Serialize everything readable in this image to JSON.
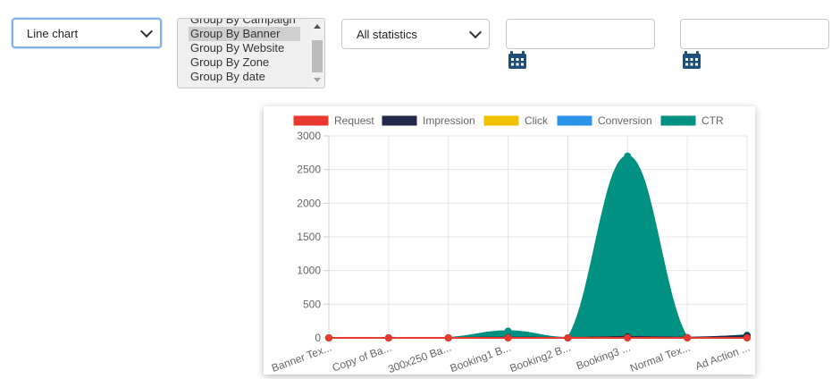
{
  "controls": {
    "chart_type": "Line chart",
    "group_options": [
      "Group By Campaign",
      "Group By Banner",
      "Group By Website",
      "Group By Zone",
      "Group By date"
    ],
    "group_selected_index": 1,
    "statistics": "All statistics",
    "date_from": "",
    "date_to": ""
  },
  "icons": {
    "calendar_from": "calendar-icon",
    "calendar_to": "calendar-icon"
  },
  "colors": {
    "accent_focus": "#7fb2f0",
    "calendar": "#1e4f7a"
  },
  "chart_data": {
    "type": "area",
    "categories": [
      "Banner Tex...",
      "Copy of Ba...",
      "300x250 Ba...",
      "Booking1 B...",
      "Booking2 B...",
      "Booking3 ...",
      "Normal Tex...",
      "Ad Action ..."
    ],
    "ylim": [
      0,
      3000
    ],
    "yticks": [
      0,
      500,
      1000,
      1500,
      2000,
      2500,
      3000
    ],
    "grid": true,
    "legend_position": "top",
    "series": [
      {
        "name": "Request",
        "color": "#e8392f",
        "values": [
          0,
          0,
          0,
          0,
          0,
          0,
          0,
          0
        ]
      },
      {
        "name": "Impression",
        "color": "#22294a",
        "values": [
          0,
          0,
          0,
          5,
          0,
          15,
          5,
          30
        ]
      },
      {
        "name": "Click",
        "color": "#f2c200",
        "values": [
          0,
          0,
          0,
          0,
          0,
          15,
          0,
          0
        ]
      },
      {
        "name": "Conversion",
        "color": "#2a93e8",
        "values": [
          0,
          0,
          0,
          0,
          0,
          0,
          0,
          0
        ]
      },
      {
        "name": "CTR",
        "color": "#009183",
        "values": [
          0,
          0,
          0,
          100,
          0,
          2700,
          0,
          40
        ]
      }
    ]
  }
}
